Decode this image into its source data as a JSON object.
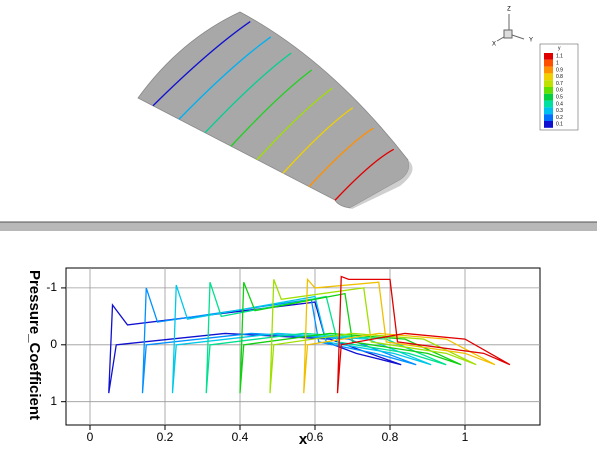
{
  "view": {
    "axes": [
      "Z",
      "Y",
      "X"
    ],
    "legend": {
      "title": "y",
      "levels": [
        1.1,
        1,
        0.9,
        0.8,
        0.7,
        0.6,
        0.5,
        0.4,
        0.3,
        0.2,
        0.1
      ],
      "colors": [
        "#e00000",
        "#ff5000",
        "#ff9000",
        "#f0d000",
        "#c0e000",
        "#60e000",
        "#00d040",
        "#00e0a0",
        "#00c0f0",
        "#0070ff",
        "#1010d0"
      ]
    },
    "stations": [
      "#1010d0",
      "#00b0f0",
      "#00d090",
      "#20d020",
      "#a0e000",
      "#f0d000",
      "#ff9000",
      "#e00000"
    ]
  },
  "chart_data": {
    "type": "line",
    "xlabel": "x",
    "ylabel": "Pressure_Coefficient",
    "xlim": [
      -0.064,
      1.2
    ],
    "ylim": [
      1.41,
      -1.35
    ],
    "xticks": [
      0,
      0.2,
      0.4,
      0.6,
      0.8,
      1
    ],
    "yticks": [
      -1,
      0,
      1
    ],
    "grid": true,
    "series": [
      {
        "color": "#1010d0",
        "x": [
          0.83,
          0.71,
          0.63,
          0.6,
          0.1,
          0.06,
          0.05,
          0.07,
          0.36,
          0.64,
          0.83
        ],
        "values": [
          0.35,
          0.15,
          -0.05,
          -0.75,
          -0.35,
          -0.7,
          0.85,
          0,
          -0.2,
          -0.1,
          0.35
        ]
      },
      {
        "color": "#0090ff",
        "x": [
          0.87,
          0.76,
          0.61,
          0.59,
          0.18,
          0.15,
          0.14,
          0.15,
          0.43,
          0.69,
          0.87
        ],
        "values": [
          0.35,
          0.15,
          -0.05,
          -0.8,
          -0.4,
          -1.0,
          0.85,
          0,
          -0.2,
          -0.1,
          0.35
        ]
      },
      {
        "color": "#00c8e8",
        "x": [
          0.91,
          0.81,
          0.63,
          0.6,
          0.26,
          0.23,
          0.22,
          0.23,
          0.5,
          0.74,
          0.91
        ],
        "values": [
          0.35,
          0.15,
          -0.05,
          -0.85,
          -0.45,
          -1.05,
          0.85,
          0,
          -0.2,
          -0.1,
          0.35
        ]
      },
      {
        "color": "#00e090",
        "x": [
          0.95,
          0.85,
          0.66,
          0.63,
          0.35,
          0.32,
          0.31,
          0.32,
          0.57,
          0.79,
          0.95
        ],
        "values": [
          0.35,
          0.15,
          -0.05,
          -0.85,
          -0.5,
          -1.1,
          0.85,
          0,
          -0.2,
          -0.1,
          0.35
        ]
      },
      {
        "color": "#10d010",
        "x": [
          0.99,
          0.9,
          0.7,
          0.68,
          0.44,
          0.41,
          0.4,
          0.41,
          0.64,
          0.84,
          0.99
        ],
        "values": [
          0.35,
          0.15,
          -0.05,
          -0.9,
          -0.6,
          -1.1,
          0.85,
          0,
          -0.2,
          -0.1,
          0.35
        ]
      },
      {
        "color": "#a0e000",
        "x": [
          1.03,
          0.95,
          0.75,
          0.73,
          0.51,
          0.49,
          0.48,
          0.49,
          0.7,
          0.89,
          1.03
        ],
        "values": [
          0.35,
          0.15,
          -0.05,
          -1.0,
          -0.8,
          -1.15,
          0.85,
          0,
          -0.2,
          -0.1,
          0.35
        ]
      },
      {
        "color": "#f0c000",
        "x": [
          1.08,
          1.0,
          0.79,
          0.77,
          0.6,
          0.58,
          0.57,
          0.58,
          0.77,
          0.95,
          1.08
        ],
        "values": [
          0.35,
          0.15,
          -0.05,
          -1.1,
          -1.0,
          -1.15,
          0.85,
          0,
          -0.2,
          -0.1,
          0.35
        ]
      },
      {
        "color": "#e00000",
        "x": [
          1.12,
          1.05,
          0.82,
          0.8,
          0.69,
          0.67,
          0.66,
          0.67,
          0.84,
          1.0,
          1.12
        ],
        "values": [
          0.35,
          0.15,
          -0.05,
          -1.15,
          -1.15,
          -1.2,
          0.85,
          0,
          -0.2,
          -0.1,
          0.35
        ]
      }
    ]
  }
}
